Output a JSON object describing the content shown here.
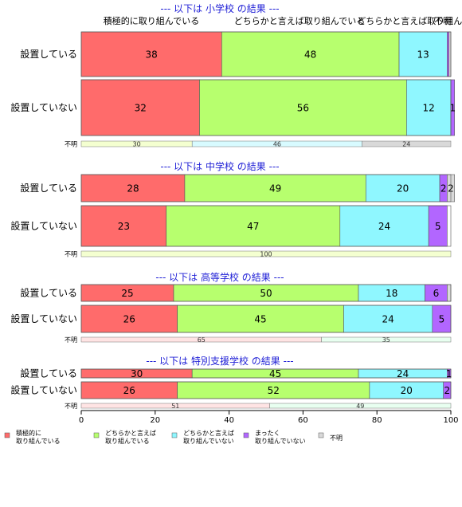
{
  "chart_data": {
    "type": "bar",
    "orientation": "horizontal",
    "stacked": true,
    "xlim": [
      0,
      100
    ],
    "x_ticks": [
      "0",
      "20",
      "40",
      "60",
      "80",
      "100"
    ],
    "top_labels": [
      "積極的に取り組んでいる",
      "どちらかと言えば取り組んでいる",
      "どちらかと言えば取り組んでいない",
      "不明"
    ],
    "legend_position": "bottom",
    "legend": [
      {
        "name": "積極的に\n取り組んでいる",
        "color": "#ff6b6b"
      },
      {
        "name": "どちらかと言えば\n取り組んでいる",
        "color": "#b7ff6e"
      },
      {
        "name": "どちらかと言えば\n取り組んでいない",
        "color": "#8ff7ff"
      },
      {
        "name": "まったく\n取り組んでいない",
        "color": "#b266ff"
      },
      {
        "name": "不明",
        "color": "#d9d9d9"
      }
    ],
    "colors": [
      "#ff6b6b",
      "#b7ff6e",
      "#8ff7ff",
      "#b266ff",
      "#d9d9d9"
    ],
    "unknown_colors": [
      "#f4ffd0",
      "#d8fbff",
      "#d9d9d9"
    ],
    "unknown_label": "不明",
    "panels": [
      {
        "title": "--- 以下は 小学校 の結果 ---",
        "rows": [
          {
            "label": "設置している",
            "values": [
              38,
              48,
              13,
              0.5,
              0.5
            ],
            "value_labels": [
              "38",
              "48",
              "13",
              "",
              ""
            ]
          },
          {
            "label": "設置していない",
            "values": [
              32,
              56,
              12,
              1,
              0
            ],
            "value_labels": [
              "32",
              "56",
              "12",
              "1",
              ""
            ]
          }
        ],
        "unknown": {
          "values": [
            30,
            46,
            24
          ],
          "value_labels": [
            "30",
            "46",
            "24"
          ]
        }
      },
      {
        "title": "--- 以下は 中学校 の結果 ---",
        "rows": [
          {
            "label": "設置している",
            "values": [
              28,
              49,
              20,
              2,
              2
            ],
            "value_labels": [
              "28",
              "49",
              "20",
              "2",
              "2"
            ]
          },
          {
            "label": "設置していない",
            "values": [
              23,
              47,
              24,
              5,
              0
            ],
            "value_labels": [
              "23",
              "47",
              "24",
              "5",
              ""
            ]
          }
        ],
        "unknown": {
          "values": [
            100
          ],
          "value_labels": [
            "100"
          ]
        }
      },
      {
        "title": "--- 以下は 高等学校 の結果 ---",
        "rows": [
          {
            "label": "設置している",
            "values": [
              25,
              50,
              18,
              6,
              1
            ],
            "value_labels": [
              "25",
              "50",
              "18",
              "6",
              ""
            ]
          },
          {
            "label": "設置していない",
            "values": [
              26,
              45,
              24,
              5,
              0
            ],
            "value_labels": [
              "26",
              "45",
              "24",
              "5",
              ""
            ]
          }
        ],
        "unknown": {
          "values": [
            65,
            35
          ],
          "value_labels": [
            "65",
            "35"
          ]
        }
      },
      {
        "title": "--- 以下は 特別支援学校 の結果 ---",
        "rows": [
          {
            "label": "設置している",
            "values": [
              30,
              45,
              24,
              1,
              0
            ],
            "value_labels": [
              "30",
              "45",
              "24",
              "1",
              ""
            ]
          },
          {
            "label": "設置していない",
            "values": [
              26,
              52,
              20,
              2,
              0
            ],
            "value_labels": [
              "26",
              "52",
              "20",
              "2",
              ""
            ]
          }
        ],
        "unknown": {
          "values": [
            51,
            49
          ],
          "value_labels": [
            "51",
            "49"
          ]
        }
      }
    ]
  }
}
